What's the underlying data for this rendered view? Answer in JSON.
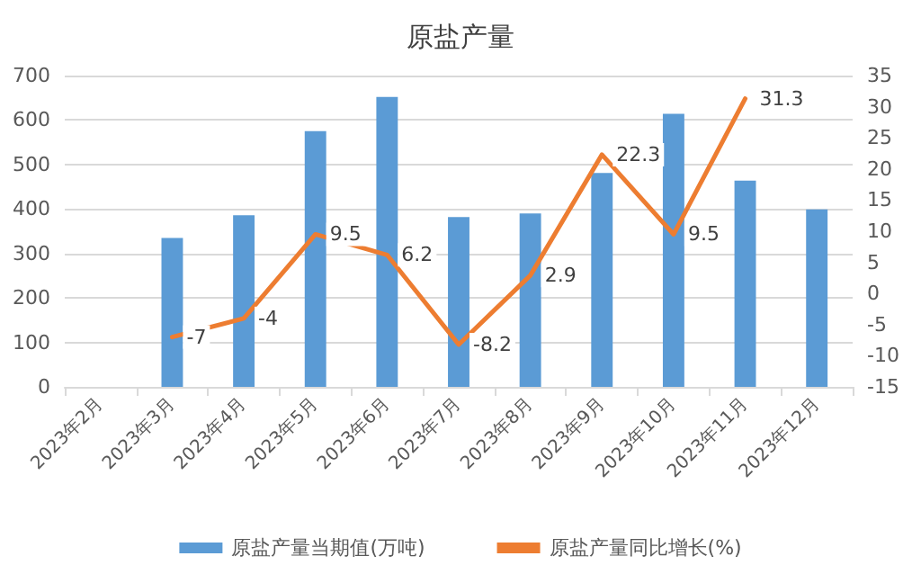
{
  "chart_data": {
    "type": "bar",
    "title": "原盐产量",
    "categories": [
      "2023年2月",
      "2023年3月",
      "2023年4月",
      "2023年5月",
      "2023年6月",
      "2023年7月",
      "2023年8月",
      "2023年9月",
      "2023年10月",
      "2023年11月",
      "2023年12月"
    ],
    "series": [
      {
        "name": "原盐产量当期值(万吨)",
        "color": "#5b9bd5",
        "values": [
          null,
          335,
          386,
          575,
          652,
          382,
          390,
          481,
          614,
          464,
          399
        ]
      },
      {
        "name": "原盐产量同比增长(%)",
        "type": "line",
        "axis": "y2",
        "color": "#ed7d31",
        "values": [
          null,
          -7,
          -4,
          9.5,
          6.2,
          -8.2,
          2.9,
          22.3,
          9.5,
          31.3,
          null
        ],
        "value_labels": [
          null,
          "-7",
          "-4",
          "9.5",
          "6.2",
          "-8.2",
          "2.9",
          "22.3",
          "9.5",
          "31.3",
          null
        ]
      }
    ],
    "ylim": [
      0,
      700
    ],
    "yticks": [
      0,
      100,
      200,
      300,
      400,
      500,
      600,
      700
    ],
    "y2lim": [
      -15,
      35
    ],
    "y2ticks": [
      -15,
      -10,
      -5,
      0,
      5,
      10,
      15,
      20,
      25,
      30,
      35
    ],
    "grid": "y",
    "legend": "bottom",
    "marker": "none",
    "line_style": "solid"
  }
}
